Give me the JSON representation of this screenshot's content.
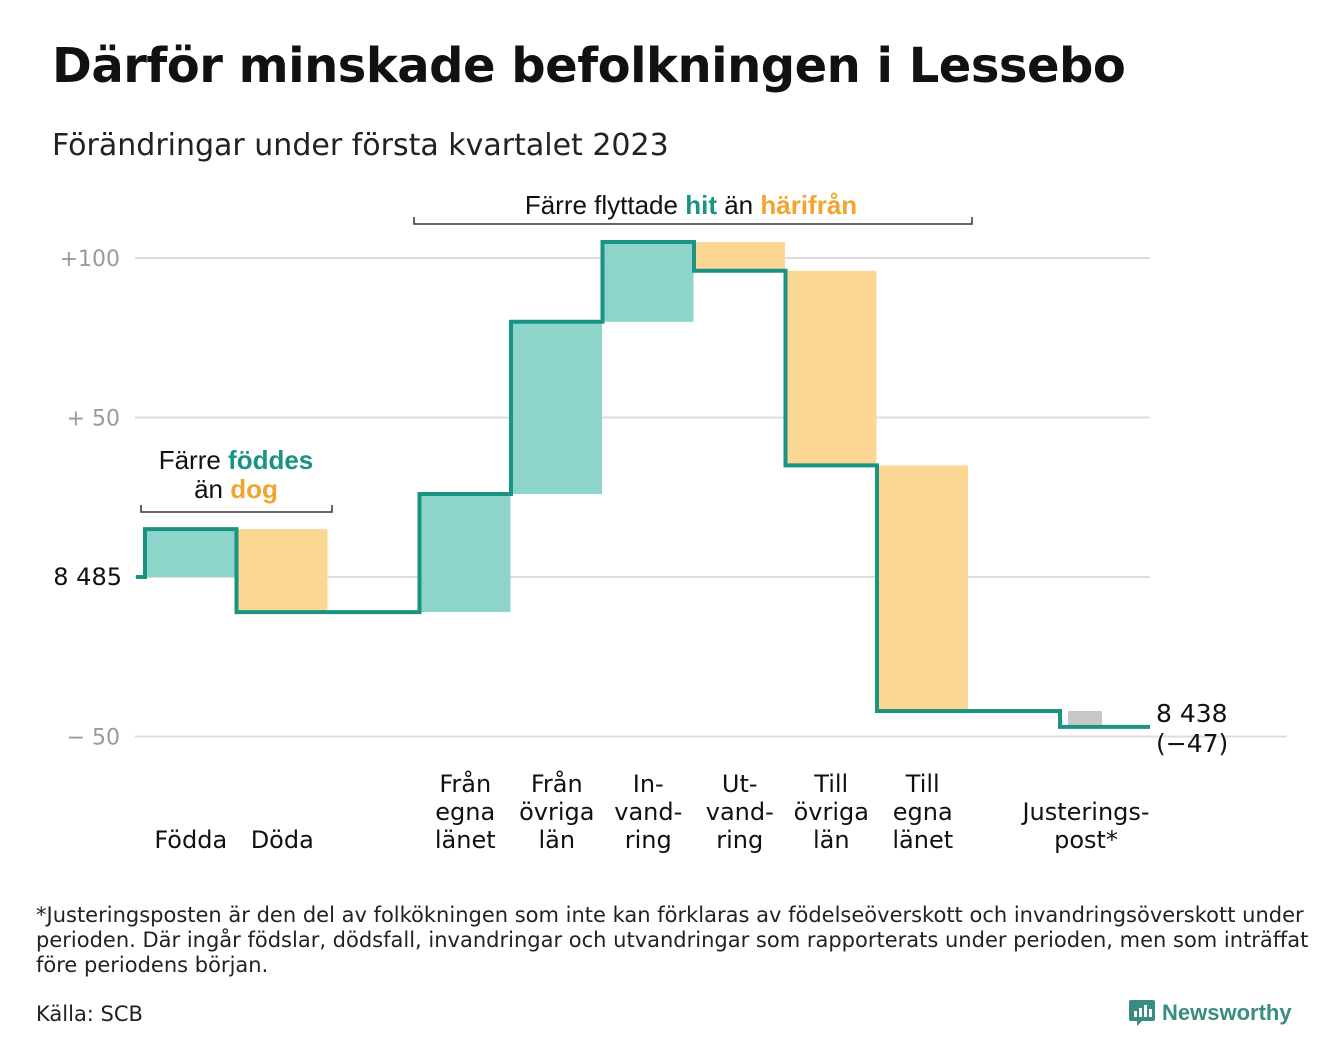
{
  "title": "Därför minskade befolkningen i Lessebo",
  "subtitle": "Förändringar under första kvartalet 2023",
  "colors": {
    "increase": "#8dd5cb",
    "decrease": "#fbd793",
    "adjustment": "#c8c8c8",
    "line": "#1a9382",
    "accent_teal": "#1a9382",
    "accent_orange": "#f2a52e",
    "grid": "#dcdcdc",
    "tick_text": "#9a9a9a",
    "brand": "#3b8c80"
  },
  "chart_data": {
    "type": "waterfall",
    "start_value": 8485,
    "start_label": "8 485",
    "end_label": "8 438",
    "end_change_label": "(−47)",
    "ylim": [
      -50,
      105
    ],
    "yticks": [
      {
        "value": 100,
        "label": "+100"
      },
      {
        "value": 50,
        "label": "+ 50"
      },
      {
        "value": 0,
        "label": ""
      },
      {
        "value": -50,
        "label": "− 50"
      }
    ],
    "steps": [
      {
        "label": [
          "Födda"
        ],
        "change": 15,
        "kind": "increase"
      },
      {
        "label": [
          "Döda"
        ],
        "change": -26,
        "kind": "decrease"
      },
      {
        "label": [],
        "change": 0,
        "kind": "none"
      },
      {
        "label": [
          "Från",
          "egna",
          "länet"
        ],
        "change": 37,
        "kind": "increase"
      },
      {
        "label": [
          "Från",
          "övriga",
          "län"
        ],
        "change": 54,
        "kind": "increase"
      },
      {
        "label": [
          "In-",
          "vand-",
          "ring"
        ],
        "change": 25,
        "kind": "increase"
      },
      {
        "label": [
          "Ut-",
          "vand-",
          "ring"
        ],
        "change": -9,
        "kind": "decrease"
      },
      {
        "label": [
          "Till",
          "övriga",
          "län"
        ],
        "change": -61,
        "kind": "decrease"
      },
      {
        "label": [
          "Till",
          "egna",
          "länet"
        ],
        "change": -77,
        "kind": "decrease"
      },
      {
        "label": [],
        "change": 0,
        "kind": "none"
      },
      {
        "label": [
          "Justerings-",
          "post*"
        ],
        "change": -5,
        "kind": "adjustment"
      }
    ],
    "annotations": [
      {
        "parts": [
          {
            "text": "Färre ",
            "color": "plain"
          },
          {
            "text": "föddes",
            "color": "teal"
          }
        ],
        "parts2": [
          {
            "text": "än ",
            "color": "plain"
          },
          {
            "text": "dog",
            "color": "orange"
          }
        ]
      },
      {
        "parts": [
          {
            "text": "Färre flyttade ",
            "color": "plain"
          },
          {
            "text": "hit",
            "color": "teal"
          },
          {
            "text": " än ",
            "color": "plain"
          },
          {
            "text": "härifrån",
            "color": "orange"
          }
        ]
      }
    ]
  },
  "footnote": "*Justeringsposten är den del av folkökningen som inte kan förklaras av födelseöverskott och invandringsöverskott under perioden. Där ingår födslar, dödsfall, invandringar och utvandringar som rapporterats under perioden, men som inträffat före periodens början.",
  "source": "Källa: SCB",
  "brand": {
    "name": "Newsworthy",
    "icon": "newsworthy-logo-icon"
  }
}
